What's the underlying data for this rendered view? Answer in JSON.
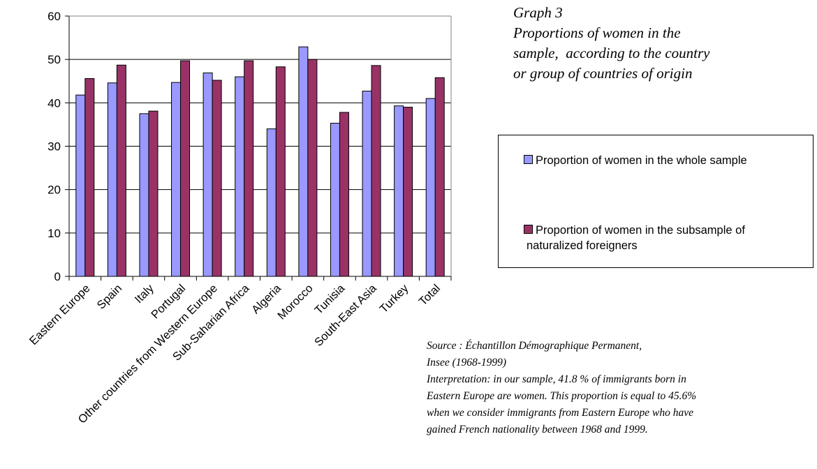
{
  "chart_data": {
    "type": "bar",
    "categories": [
      "Eastern Europe",
      "Spain",
      "Italy",
      "Portugal",
      "Other countries from Western Europe",
      "Sub-Saharian Africa",
      "Algeria",
      "Morocco",
      "Tunisia",
      "South-East Asia",
      "Turkey",
      "Total"
    ],
    "series": [
      {
        "name": "Proportion of women in the whole sample",
        "color": "#9999ff",
        "values": [
          41.8,
          44.6,
          37.5,
          44.7,
          46.9,
          46.0,
          34.0,
          52.9,
          35.3,
          42.7,
          39.3,
          41.0
        ]
      },
      {
        "name": "Proportion of women in the subsample of naturalized foreigners",
        "color": "#993366",
        "values": [
          45.6,
          48.7,
          38.1,
          49.7,
          45.2,
          49.7,
          48.3,
          50.0,
          37.8,
          48.6,
          39.0,
          45.8
        ]
      }
    ],
    "ylim": [
      0,
      60
    ],
    "yticks": [
      0,
      10,
      20,
      30,
      40,
      50,
      60
    ],
    "grid": true,
    "plot_area_color": "#ffffff",
    "legend_position": "right"
  },
  "title": {
    "line1": "Graph 3",
    "line2": "Proportions of women in the",
    "line3": "sample,  according to the country",
    "line4": "or group of countries of origin"
  },
  "legend": {
    "series1_label": "Proportion of women in the whole sample",
    "series2_label_line1": "Proportion of women in the subsample of",
    "series2_label_line2": "naturalized foreigners"
  },
  "source": {
    "line1": "Source : Échantillon Démographique Permanent,",
    "line2": "Insee (1968-1999)",
    "line3": "Interpretation: in our sample, 41.8 % of immigrants born in",
    "line4": "Eastern Europe are women. This proportion is equal to 45.6%",
    "line5": "when we consider immigrants from Eastern Europe who have",
    "line6": "gained French nationality between 1968 and 1999."
  }
}
